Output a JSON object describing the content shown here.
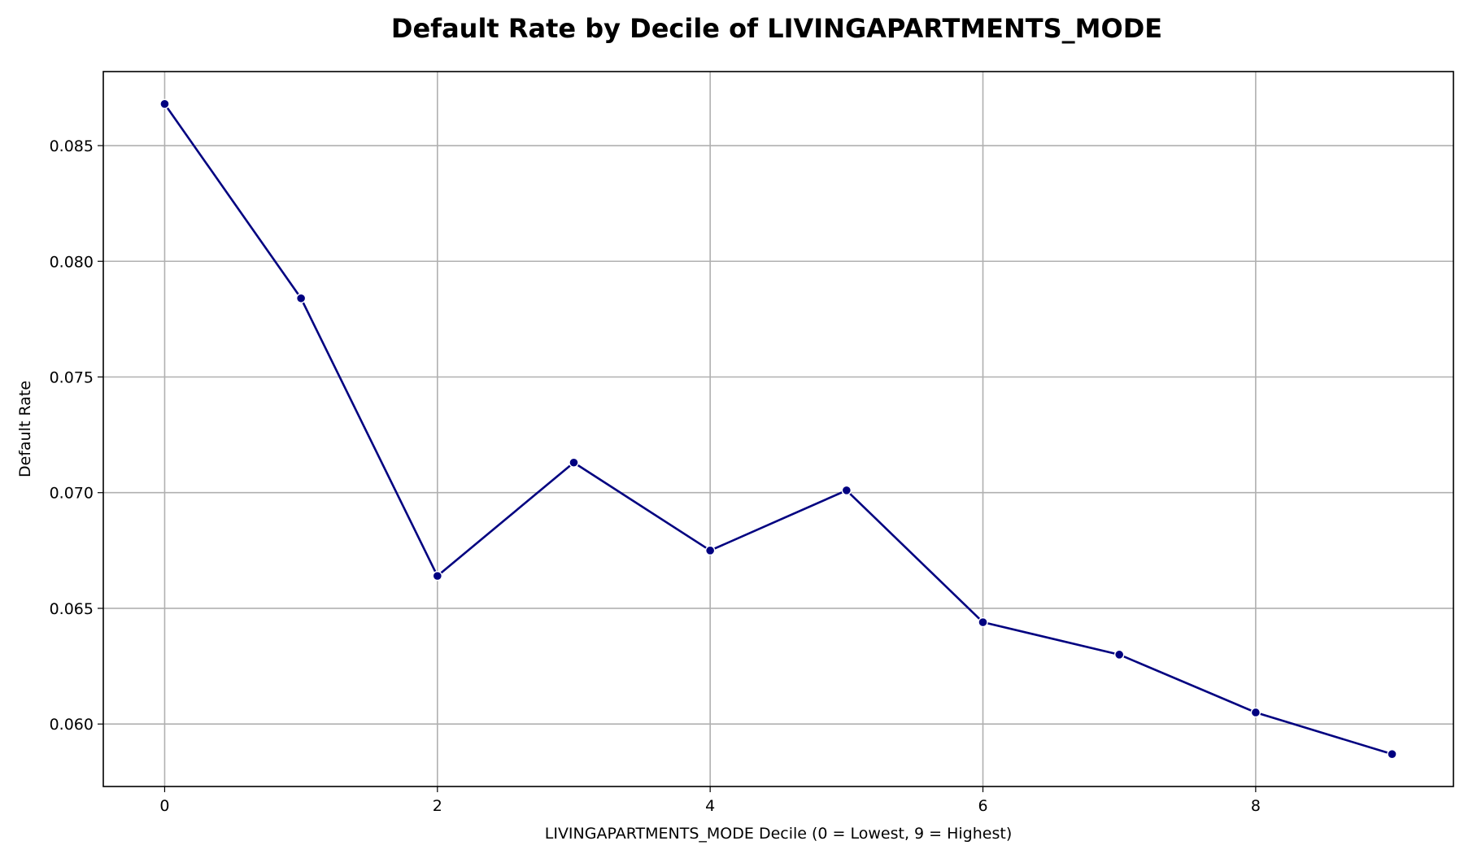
{
  "chart_data": {
    "type": "line",
    "title": "Default Rate by Decile of LIVINGAPARTMENTS_MODE",
    "xlabel": "LIVINGAPARTMENTS_MODE Decile (0 = Lowest, 9 = Highest)",
    "ylabel": "Default Rate",
    "x": [
      0,
      1,
      2,
      3,
      4,
      5,
      6,
      7,
      8,
      9
    ],
    "series": [
      {
        "values": [
          0.0868,
          0.0784,
          0.0664,
          0.0713,
          0.0675,
          0.0701,
          0.0644,
          0.063,
          0.0605,
          0.0587
        ],
        "color": "#000080"
      }
    ],
    "xlim": [
      -0.45,
      9.45
    ],
    "ylim": [
      0.0573,
      0.0882
    ],
    "x_ticks": [
      0,
      2,
      4,
      6,
      8
    ],
    "x_tick_labels": [
      "0",
      "2",
      "4",
      "6",
      "8"
    ],
    "y_ticks": [
      0.06,
      0.065,
      0.07,
      0.075,
      0.08,
      0.085
    ],
    "y_tick_labels": [
      "0.060",
      "0.065",
      "0.070",
      "0.075",
      "0.080",
      "0.085"
    ],
    "grid": true,
    "legend": "none"
  }
}
